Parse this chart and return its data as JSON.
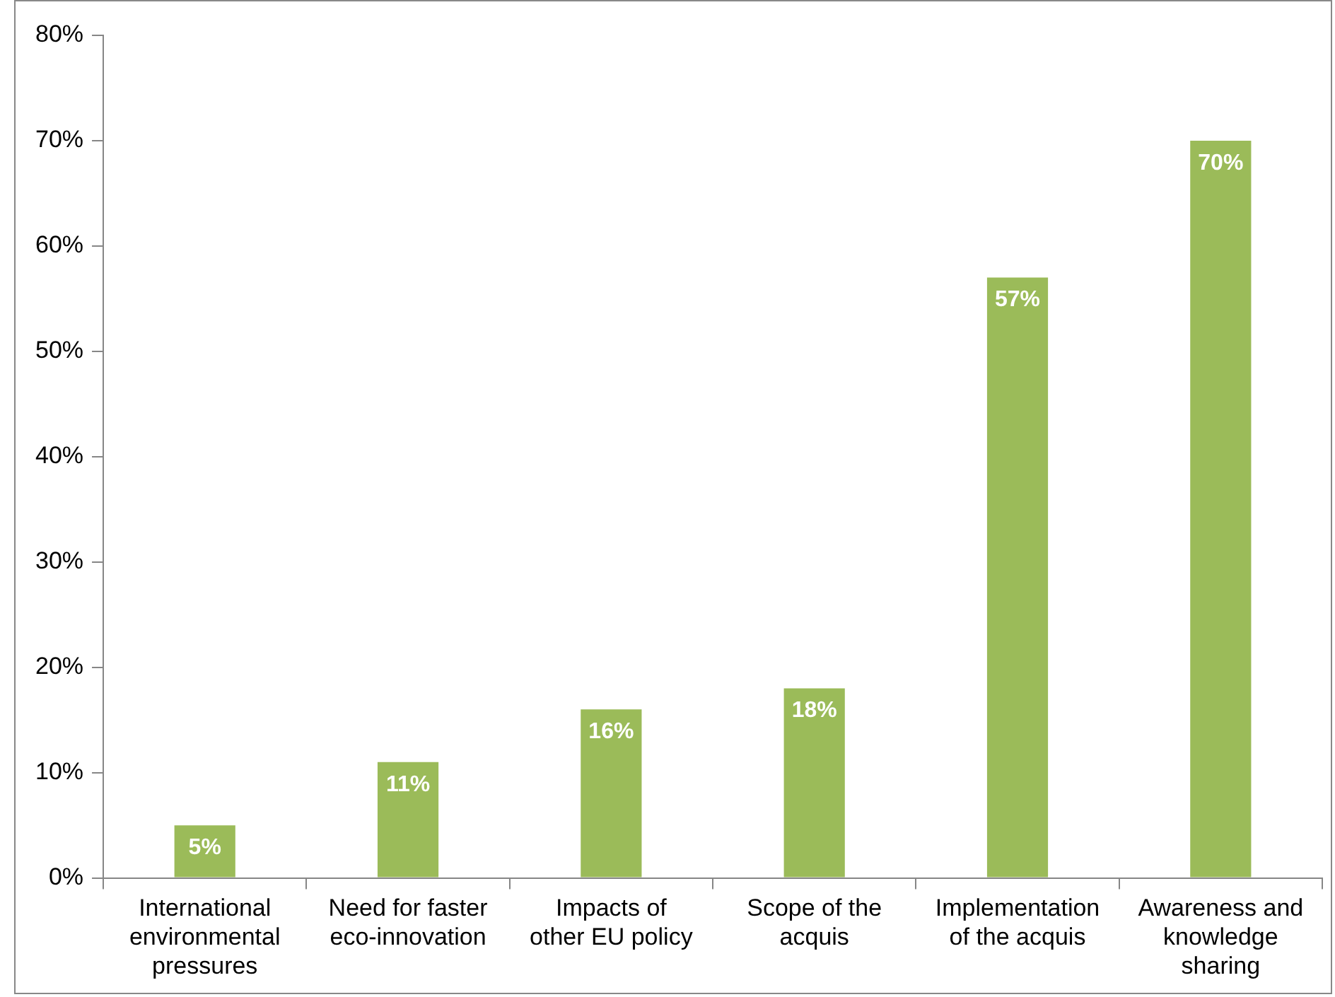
{
  "chart_data": {
    "type": "bar",
    "categories": [
      "International environmental pressures",
      "Need for faster eco-innovation",
      "Impacts of other EU policy",
      "Scope of the acquis",
      "Implementation of the acquis",
      "Awareness and knowledge sharing"
    ],
    "values": [
      5,
      11,
      16,
      18,
      57,
      70
    ],
    "value_labels": [
      "5%",
      "11%",
      "16%",
      "18%",
      "57%",
      "70%"
    ],
    "color": "#9bbb59",
    "ylim": [
      0,
      80
    ],
    "yticks": [
      {
        "value": 0,
        "label": "0%"
      },
      {
        "value": 10,
        "label": "10%"
      },
      {
        "value": 20,
        "label": "20%"
      },
      {
        "value": 30,
        "label": "30%"
      },
      {
        "value": 40,
        "label": "40%"
      },
      {
        "value": 50,
        "label": "50%"
      },
      {
        "value": 60,
        "label": "60%"
      },
      {
        "value": 70,
        "label": "70%"
      },
      {
        "value": 80,
        "label": "80%"
      }
    ],
    "grid": false,
    "legend": false
  }
}
